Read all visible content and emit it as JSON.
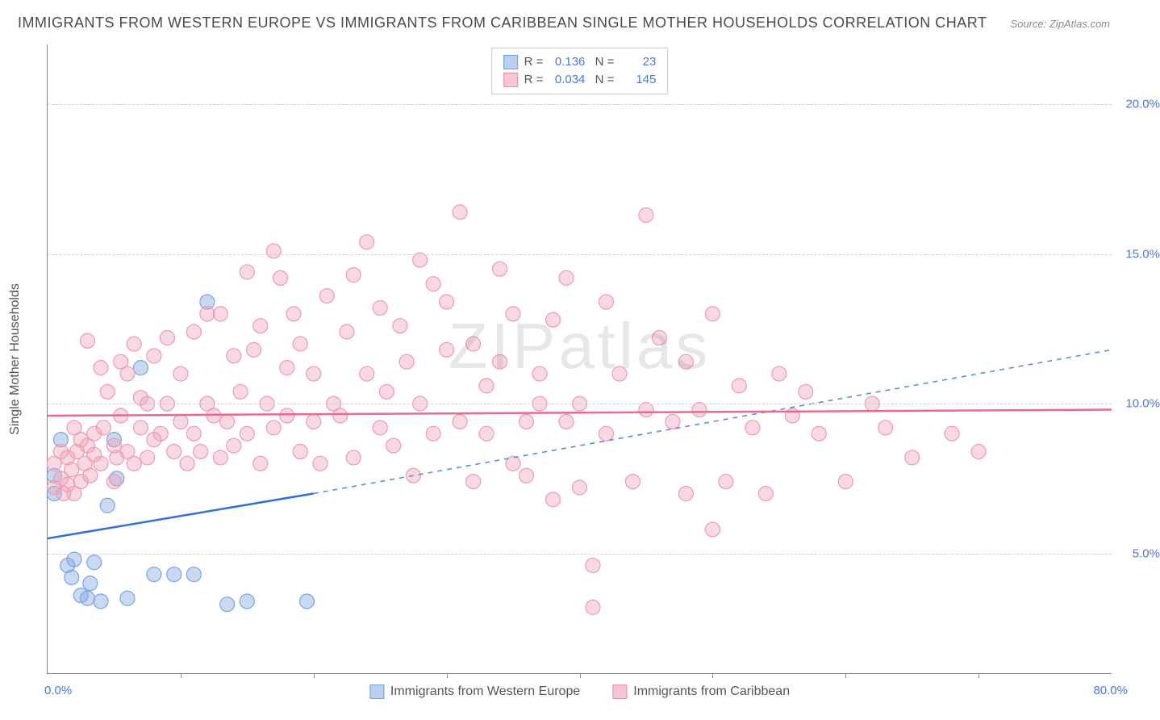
{
  "title": "IMMIGRANTS FROM WESTERN EUROPE VS IMMIGRANTS FROM CARIBBEAN SINGLE MOTHER HOUSEHOLDS CORRELATION CHART",
  "source": "Source: ZipAtlas.com",
  "watermark": "ZIPatlas",
  "yaxis_title": "Single Mother Households",
  "chart": {
    "type": "scatter",
    "xlim": [
      0,
      80
    ],
    "ylim": [
      1,
      22
    ],
    "xtick_step": 10,
    "yticks": [
      5,
      10,
      15,
      20
    ],
    "ytick_labels": [
      "5.0%",
      "10.0%",
      "15.0%",
      "20.0%"
    ],
    "xaxis_min_label": "0.0%",
    "xaxis_max_label": "80.0%",
    "grid_color": "#d0d0d0",
    "background_color": "#ffffff",
    "axis_color": "#888888",
    "tick_label_color": "#4a77e0"
  },
  "series": [
    {
      "name": "Immigrants from Western Europe",
      "label": "Immigrants from Western Europe",
      "marker_fill": "rgba(132,170,224,0.45)",
      "marker_stroke": "#7ba6e0",
      "swatch_fill": "#b9d0ef",
      "swatch_border": "#6f9fdc",
      "line_color": "#2f6fd6",
      "line_dash_color": "#5a8fd8",
      "r": 0.136,
      "n": 23,
      "trend": {
        "x1": 0,
        "y1": 5.5,
        "x2": 20,
        "y2": 7.0,
        "x2_dash": 80,
        "y2_dash": 11.8
      },
      "points": [
        [
          0.5,
          7.6
        ],
        [
          0.5,
          7.0
        ],
        [
          1.0,
          8.8
        ],
        [
          1.5,
          4.6
        ],
        [
          1.8,
          4.2
        ],
        [
          2.0,
          4.8
        ],
        [
          2.5,
          3.6
        ],
        [
          3.0,
          3.5
        ],
        [
          3.2,
          4.0
        ],
        [
          3.5,
          4.7
        ],
        [
          4.0,
          3.4
        ],
        [
          4.5,
          6.6
        ],
        [
          5.0,
          8.8
        ],
        [
          5.2,
          7.5
        ],
        [
          6.0,
          3.5
        ],
        [
          7.0,
          11.2
        ],
        [
          8.0,
          4.3
        ],
        [
          9.5,
          4.3
        ],
        [
          11.0,
          4.3
        ],
        [
          12.0,
          13.4
        ],
        [
          13.5,
          3.3
        ],
        [
          15.0,
          3.4
        ],
        [
          19.5,
          3.4
        ]
      ]
    },
    {
      "name": "Immigrants from Caribbean",
      "label": "Immigrants from Caribbean",
      "marker_fill": "rgba(240,160,180,0.40)",
      "marker_stroke": "#ec9bb2",
      "swatch_fill": "#f6c7d3",
      "swatch_border": "#e88ba6",
      "line_color": "#e86b8f",
      "r": 0.034,
      "n": 145,
      "trend": {
        "x1": 0,
        "y1": 9.6,
        "x2": 80,
        "y2": 9.8
      },
      "points": [
        [
          0.5,
          7.2
        ],
        [
          0.5,
          8.0
        ],
        [
          1.0,
          7.5
        ],
        [
          1.0,
          8.4
        ],
        [
          1.2,
          7.0
        ],
        [
          1.5,
          7.3
        ],
        [
          1.5,
          8.2
        ],
        [
          1.8,
          7.8
        ],
        [
          2.0,
          9.2
        ],
        [
          2.0,
          7.0
        ],
        [
          2.2,
          8.4
        ],
        [
          2.5,
          7.4
        ],
        [
          2.5,
          8.8
        ],
        [
          2.8,
          8.0
        ],
        [
          3.0,
          12.1
        ],
        [
          3.0,
          8.6
        ],
        [
          3.2,
          7.6
        ],
        [
          3.5,
          9.0
        ],
        [
          3.5,
          8.3
        ],
        [
          4.0,
          11.2
        ],
        [
          4.0,
          8.0
        ],
        [
          4.2,
          9.2
        ],
        [
          4.5,
          10.4
        ],
        [
          5.0,
          8.6
        ],
        [
          5.0,
          7.4
        ],
        [
          5.2,
          8.2
        ],
        [
          5.5,
          11.4
        ],
        [
          5.5,
          9.6
        ],
        [
          6.0,
          8.4
        ],
        [
          6.0,
          11.0
        ],
        [
          6.5,
          8.0
        ],
        [
          6.5,
          12.0
        ],
        [
          7.0,
          10.2
        ],
        [
          7.0,
          9.2
        ],
        [
          7.5,
          8.2
        ],
        [
          7.5,
          10.0
        ],
        [
          8.0,
          11.6
        ],
        [
          8.0,
          8.8
        ],
        [
          8.5,
          9.0
        ],
        [
          9.0,
          12.2
        ],
        [
          9.0,
          10.0
        ],
        [
          9.5,
          8.4
        ],
        [
          10.0,
          11.0
        ],
        [
          10.0,
          9.4
        ],
        [
          10.5,
          8.0
        ],
        [
          11.0,
          12.4
        ],
        [
          11.0,
          9.0
        ],
        [
          11.5,
          8.4
        ],
        [
          12.0,
          13.0
        ],
        [
          12.0,
          10.0
        ],
        [
          12.5,
          9.6
        ],
        [
          13.0,
          13.0
        ],
        [
          13.0,
          8.2
        ],
        [
          13.5,
          9.4
        ],
        [
          14.0,
          11.6
        ],
        [
          14.0,
          8.6
        ],
        [
          14.5,
          10.4
        ],
        [
          15.0,
          14.4
        ],
        [
          15.0,
          9.0
        ],
        [
          15.5,
          11.8
        ],
        [
          16.0,
          12.6
        ],
        [
          16.0,
          8.0
        ],
        [
          16.5,
          10.0
        ],
        [
          17.0,
          15.1
        ],
        [
          17.0,
          9.2
        ],
        [
          17.5,
          14.2
        ],
        [
          18.0,
          11.2
        ],
        [
          18.0,
          9.6
        ],
        [
          18.5,
          13.0
        ],
        [
          19.0,
          8.4
        ],
        [
          19.0,
          12.0
        ],
        [
          20.0,
          9.4
        ],
        [
          20.0,
          11.0
        ],
        [
          20.5,
          8.0
        ],
        [
          21.0,
          13.6
        ],
        [
          21.5,
          10.0
        ],
        [
          22.0,
          9.6
        ],
        [
          22.5,
          12.4
        ],
        [
          23.0,
          8.2
        ],
        [
          23.0,
          14.3
        ],
        [
          24.0,
          11.0
        ],
        [
          24.0,
          15.4
        ],
        [
          25.0,
          9.2
        ],
        [
          25.0,
          13.2
        ],
        [
          25.5,
          10.4
        ],
        [
          26.0,
          8.6
        ],
        [
          26.5,
          12.6
        ],
        [
          27.0,
          11.4
        ],
        [
          27.5,
          7.6
        ],
        [
          28.0,
          14.8
        ],
        [
          28.0,
          10.0
        ],
        [
          29.0,
          9.0
        ],
        [
          29.0,
          14.0
        ],
        [
          30.0,
          11.8
        ],
        [
          30.0,
          13.4
        ],
        [
          31.0,
          16.4
        ],
        [
          31.0,
          9.4
        ],
        [
          32.0,
          7.4
        ],
        [
          32.0,
          12.0
        ],
        [
          33.0,
          10.6
        ],
        [
          33.0,
          9.0
        ],
        [
          34.0,
          14.5
        ],
        [
          34.0,
          11.4
        ],
        [
          35.0,
          8.0
        ],
        [
          35.0,
          13.0
        ],
        [
          36.0,
          9.4
        ],
        [
          36.0,
          7.6
        ],
        [
          37.0,
          11.0
        ],
        [
          37.0,
          10.0
        ],
        [
          38.0,
          6.8
        ],
        [
          38.0,
          12.8
        ],
        [
          39.0,
          9.4
        ],
        [
          39.0,
          14.2
        ],
        [
          40.0,
          7.2
        ],
        [
          40.0,
          10.0
        ],
        [
          41.0,
          4.6
        ],
        [
          41.0,
          3.2
        ],
        [
          42.0,
          9.0
        ],
        [
          42.0,
          13.4
        ],
        [
          43.0,
          11.0
        ],
        [
          44.0,
          7.4
        ],
        [
          45.0,
          16.3
        ],
        [
          45.0,
          9.8
        ],
        [
          46.0,
          12.2
        ],
        [
          47.0,
          9.4
        ],
        [
          48.0,
          7.0
        ],
        [
          48.0,
          11.4
        ],
        [
          49.0,
          9.8
        ],
        [
          50.0,
          5.8
        ],
        [
          50.0,
          13.0
        ],
        [
          51.0,
          7.4
        ],
        [
          52.0,
          10.6
        ],
        [
          53.0,
          9.2
        ],
        [
          54.0,
          7.0
        ],
        [
          55.0,
          11.0
        ],
        [
          56.0,
          9.6
        ],
        [
          57.0,
          10.4
        ],
        [
          58.0,
          9.0
        ],
        [
          60.0,
          7.4
        ],
        [
          62.0,
          10.0
        ],
        [
          63.0,
          9.2
        ],
        [
          65.0,
          8.2
        ],
        [
          68.0,
          9.0
        ],
        [
          70.0,
          8.4
        ]
      ]
    }
  ]
}
